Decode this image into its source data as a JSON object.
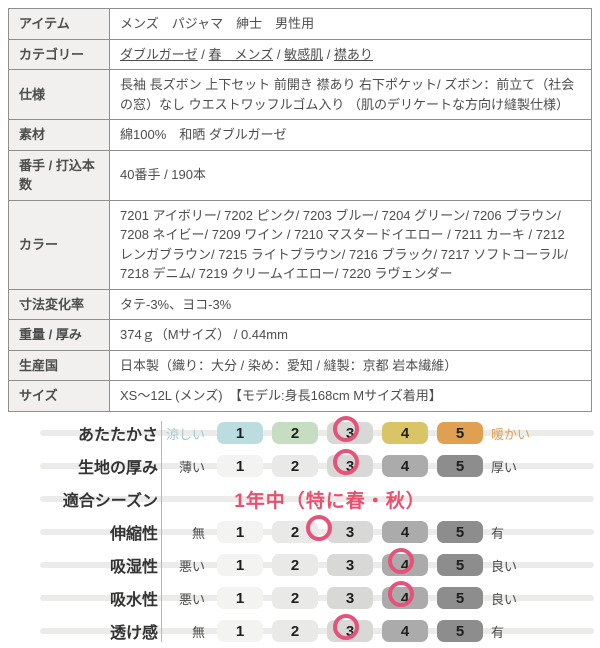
{
  "spec_table": {
    "rows": [
      {
        "label": "アイテム",
        "value": "メンズ　パジャマ　紳士　男性用"
      },
      {
        "label": "カテゴリー",
        "links": [
          "ダブルガーゼ",
          "春　メンズ",
          "敏感肌",
          "襟あり"
        ],
        "sep": " / "
      },
      {
        "label": "仕様",
        "value": "長袖 長ズボン 上下セット 前開き 襟あり 右下ポケット/ ズボン：前立て（社会の窓）なし ウエストワッフルゴム入り （肌のデリケートな方向け縫製仕様）"
      },
      {
        "label": "素材",
        "value": "綿100%　和晒 ダブルガーゼ"
      },
      {
        "label": "番手 / 打込本数",
        "value": "40番手 / 190本"
      },
      {
        "label": "カラー",
        "value": "7201 アイボリー/ 7202 ピンク/ 7203 ブルー/ 7204 グリーン/ 7206 ブラウン/ 7208 ネイビー/ 7209 ワイン / 7210 マスタードイエロー / 7211 カーキ / 7212 レンガブラウン/ 7215 ライトブラウン/ 7216 ブラック/ 7217 ソフトコーラル/ 7218 デニム/ 7219 クリームイエロー/ 7220 ラヴェンダー"
      },
      {
        "label": "寸法変化率",
        "value": "タテ-3%、ヨコ-3%"
      },
      {
        "label": "重量 / 厚み",
        "value": "374ｇ（Mサイズ） / 0.44mm"
      },
      {
        "label": "生産国",
        "value": "日本製（織り：大分 / 染め：愛知 / 縫製：京都 岩本繊維）"
      },
      {
        "label": "サイズ",
        "value": "XS～12L (メンズ)　【モデル:身長168cm Mサイズ着用】"
      }
    ]
  },
  "rating_chart": {
    "scale": [
      "1",
      "2",
      "3",
      "4",
      "5"
    ],
    "rows": [
      {
        "name": "あたたかさ",
        "left": "涼しい",
        "right": "暖かい",
        "value": 3
      },
      {
        "name": "生地の厚み",
        "left": "薄い",
        "right": "厚い",
        "value": 3
      },
      {
        "name": "適合シーズン",
        "text": "1年中（特に春・秋）"
      },
      {
        "name": "伸縮性",
        "left": "無",
        "right": "有",
        "value": 2.5
      },
      {
        "name": "吸湿性",
        "left": "悪い",
        "right": "良い",
        "value": 4
      },
      {
        "name": "吸水性",
        "left": "悪い",
        "right": "良い",
        "value": 4
      },
      {
        "name": "透け感",
        "left": "無",
        "right": "有",
        "value": 3
      }
    ],
    "colors": {
      "circle": "#e5537a",
      "season_text": "#e8506e",
      "warmth_pills": [
        "#bcdde0",
        "#c6ddc1",
        "#d8d8d6",
        "#d9c566",
        "#dfa052"
      ],
      "gray_pills": [
        "#f3f3f2",
        "#e9e9e8",
        "#d8d8d7",
        "#ababab",
        "#8d8d8d"
      ],
      "cool_label": "#a3cad0",
      "warm_label": "#dfa052",
      "band": "#ebebe9",
      "divider_line": "#d9ab9f"
    }
  }
}
